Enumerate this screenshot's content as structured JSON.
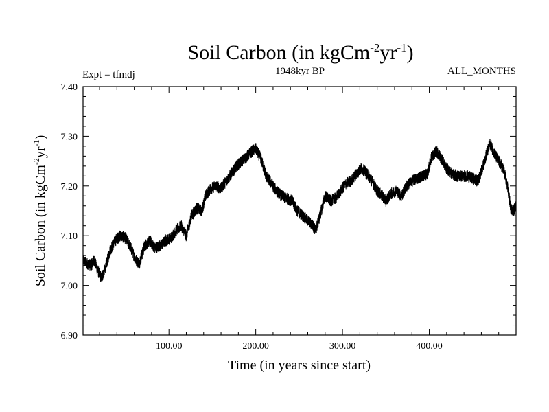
{
  "chart_data": {
    "type": "line",
    "title": "Soil Carbon (in kgCm",
    "title_sup1": "-2",
    "title_mid": "yr",
    "title_sup2": "-1",
    "title_end": ")",
    "subtitle_left": "Expt = tfmdj",
    "subtitle_center": "1948kyr BP",
    "subtitle_right": "ALL_MONTHS",
    "xlabel": "Time (in years since start)",
    "ylabel": "Soil Carbon (in kgCm",
    "ylabel_sup1": "-2",
    "ylabel_mid": "yr",
    "ylabel_sup2": "-1",
    "ylabel_end": ")",
    "xlim": [
      1,
      500
    ],
    "ylim": [
      6.9,
      7.4
    ],
    "x_ticks": [
      100,
      200,
      300,
      400
    ],
    "x_tick_labels": [
      "100.00",
      "200.00",
      "300.00",
      "400.00"
    ],
    "y_ticks": [
      6.9,
      7.0,
      7.1,
      7.2,
      7.3,
      7.4
    ],
    "y_tick_labels": [
      "6.90",
      "7.00",
      "7.10",
      "7.20",
      "7.30",
      "7.40"
    ],
    "series_color": "#000000",
    "anchors": {
      "x": [
        1,
        5,
        10,
        14,
        18,
        22,
        26,
        32,
        38,
        44,
        50,
        55,
        62,
        66,
        72,
        78,
        84,
        90,
        96,
        102,
        108,
        114,
        120,
        126,
        132,
        138,
        142,
        148,
        154,
        160,
        166,
        172,
        178,
        184,
        190,
        196,
        200,
        206,
        212,
        218,
        224,
        230,
        236,
        242,
        248,
        254,
        260,
        266,
        269,
        274,
        280,
        286,
        292,
        298,
        304,
        310,
        316,
        322,
        328,
        334,
        340,
        346,
        350,
        356,
        362,
        368,
        374,
        380,
        386,
        392,
        398,
        402,
        408,
        414,
        420,
        426,
        432,
        438,
        444,
        450,
        456,
        462,
        466,
        470,
        474,
        478,
        482,
        486,
        490,
        494,
        497,
        500
      ],
      "y": [
        7.05,
        7.045,
        7.04,
        7.05,
        7.03,
        7.015,
        7.03,
        7.07,
        7.09,
        7.1,
        7.095,
        7.08,
        7.05,
        7.045,
        7.08,
        7.09,
        7.075,
        7.08,
        7.09,
        7.095,
        7.11,
        7.12,
        7.1,
        7.14,
        7.155,
        7.15,
        7.18,
        7.195,
        7.2,
        7.195,
        7.21,
        7.225,
        7.24,
        7.25,
        7.26,
        7.27,
        7.275,
        7.255,
        7.22,
        7.205,
        7.19,
        7.18,
        7.175,
        7.17,
        7.15,
        7.14,
        7.13,
        7.12,
        7.11,
        7.14,
        7.18,
        7.17,
        7.175,
        7.19,
        7.205,
        7.21,
        7.225,
        7.235,
        7.225,
        7.21,
        7.19,
        7.18,
        7.17,
        7.185,
        7.19,
        7.18,
        7.2,
        7.21,
        7.215,
        7.22,
        7.225,
        7.255,
        7.27,
        7.255,
        7.235,
        7.225,
        7.22,
        7.22,
        7.22,
        7.215,
        7.21,
        7.24,
        7.265,
        7.285,
        7.27,
        7.255,
        7.245,
        7.23,
        7.2,
        7.155,
        7.15,
        7.16
      ]
    },
    "noise_amplitude": 0.012
  }
}
